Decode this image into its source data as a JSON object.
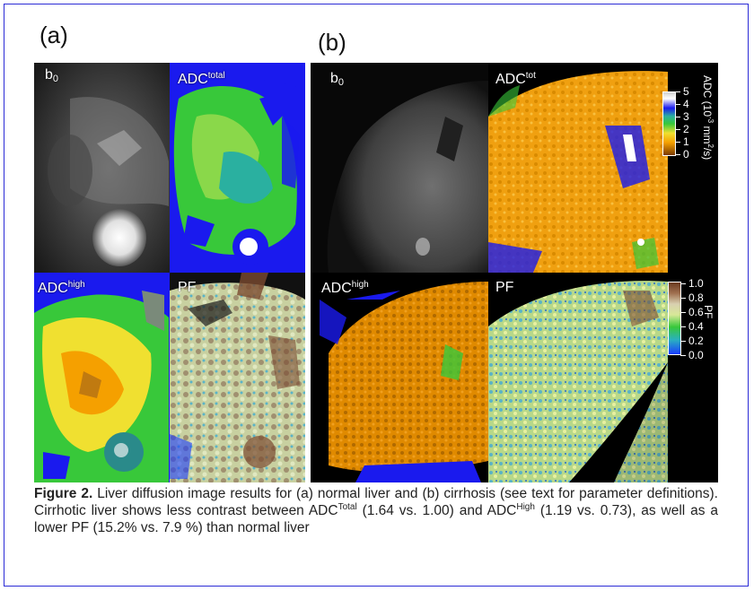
{
  "panels": {
    "a": {
      "letter": "(a)",
      "tiles": {
        "b0": {
          "base": "b",
          "sub": "0"
        },
        "adc_total": {
          "base": "ADC",
          "sup": "total"
        },
        "adc_high": {
          "base": "ADC",
          "sup": "high"
        },
        "pf": {
          "base": "PF"
        }
      }
    },
    "b": {
      "letter": "(b)",
      "tiles": {
        "b0": {
          "base": "b",
          "sub": "0"
        },
        "adc_tot": {
          "base": "ADC",
          "sup": "tot"
        },
        "adc_high": {
          "base": "ADC",
          "sup": "high"
        },
        "pf": {
          "base": "PF"
        }
      },
      "adc_colorbar": {
        "title_pre": "ADC (10",
        "title_sup": "-3",
        "title_mid": " mm",
        "title_sup2": "2",
        "title_post": "/s)",
        "ticks": [
          "5",
          "4",
          "3",
          "2",
          "1",
          "0"
        ]
      },
      "pf_colorbar": {
        "title": "PF",
        "ticks": [
          "1.0",
          "0.8",
          "0.6",
          "0.4",
          "0.2",
          "0.0"
        ]
      }
    }
  },
  "caption": {
    "label": "Figure 2.",
    "part1": " Liver diffusion image results for (a) normal liver and (b) cirrhosis (see text for parameter definitions). Cirrhotic liver shows less contrast between ADC",
    "sup1": "Total",
    "part2": " (1.64 vs. 1.00) and ADC",
    "sup2": "High",
    "part3": " (1.19 vs. 0.73), as well as a lower PF (15.2% vs. 7.9 %) than normal liver"
  },
  "colors": {
    "frame_border": "#2b2bd6",
    "adc_low": "#8a4a00",
    "adc_mid": "#f5a000",
    "adc_green": "#38c83a",
    "adc_high": "#1a1aee",
    "pf_low": "#1a3cff",
    "pf_mid": "#d8d8a0",
    "pf_high": "#7a4a30"
  }
}
